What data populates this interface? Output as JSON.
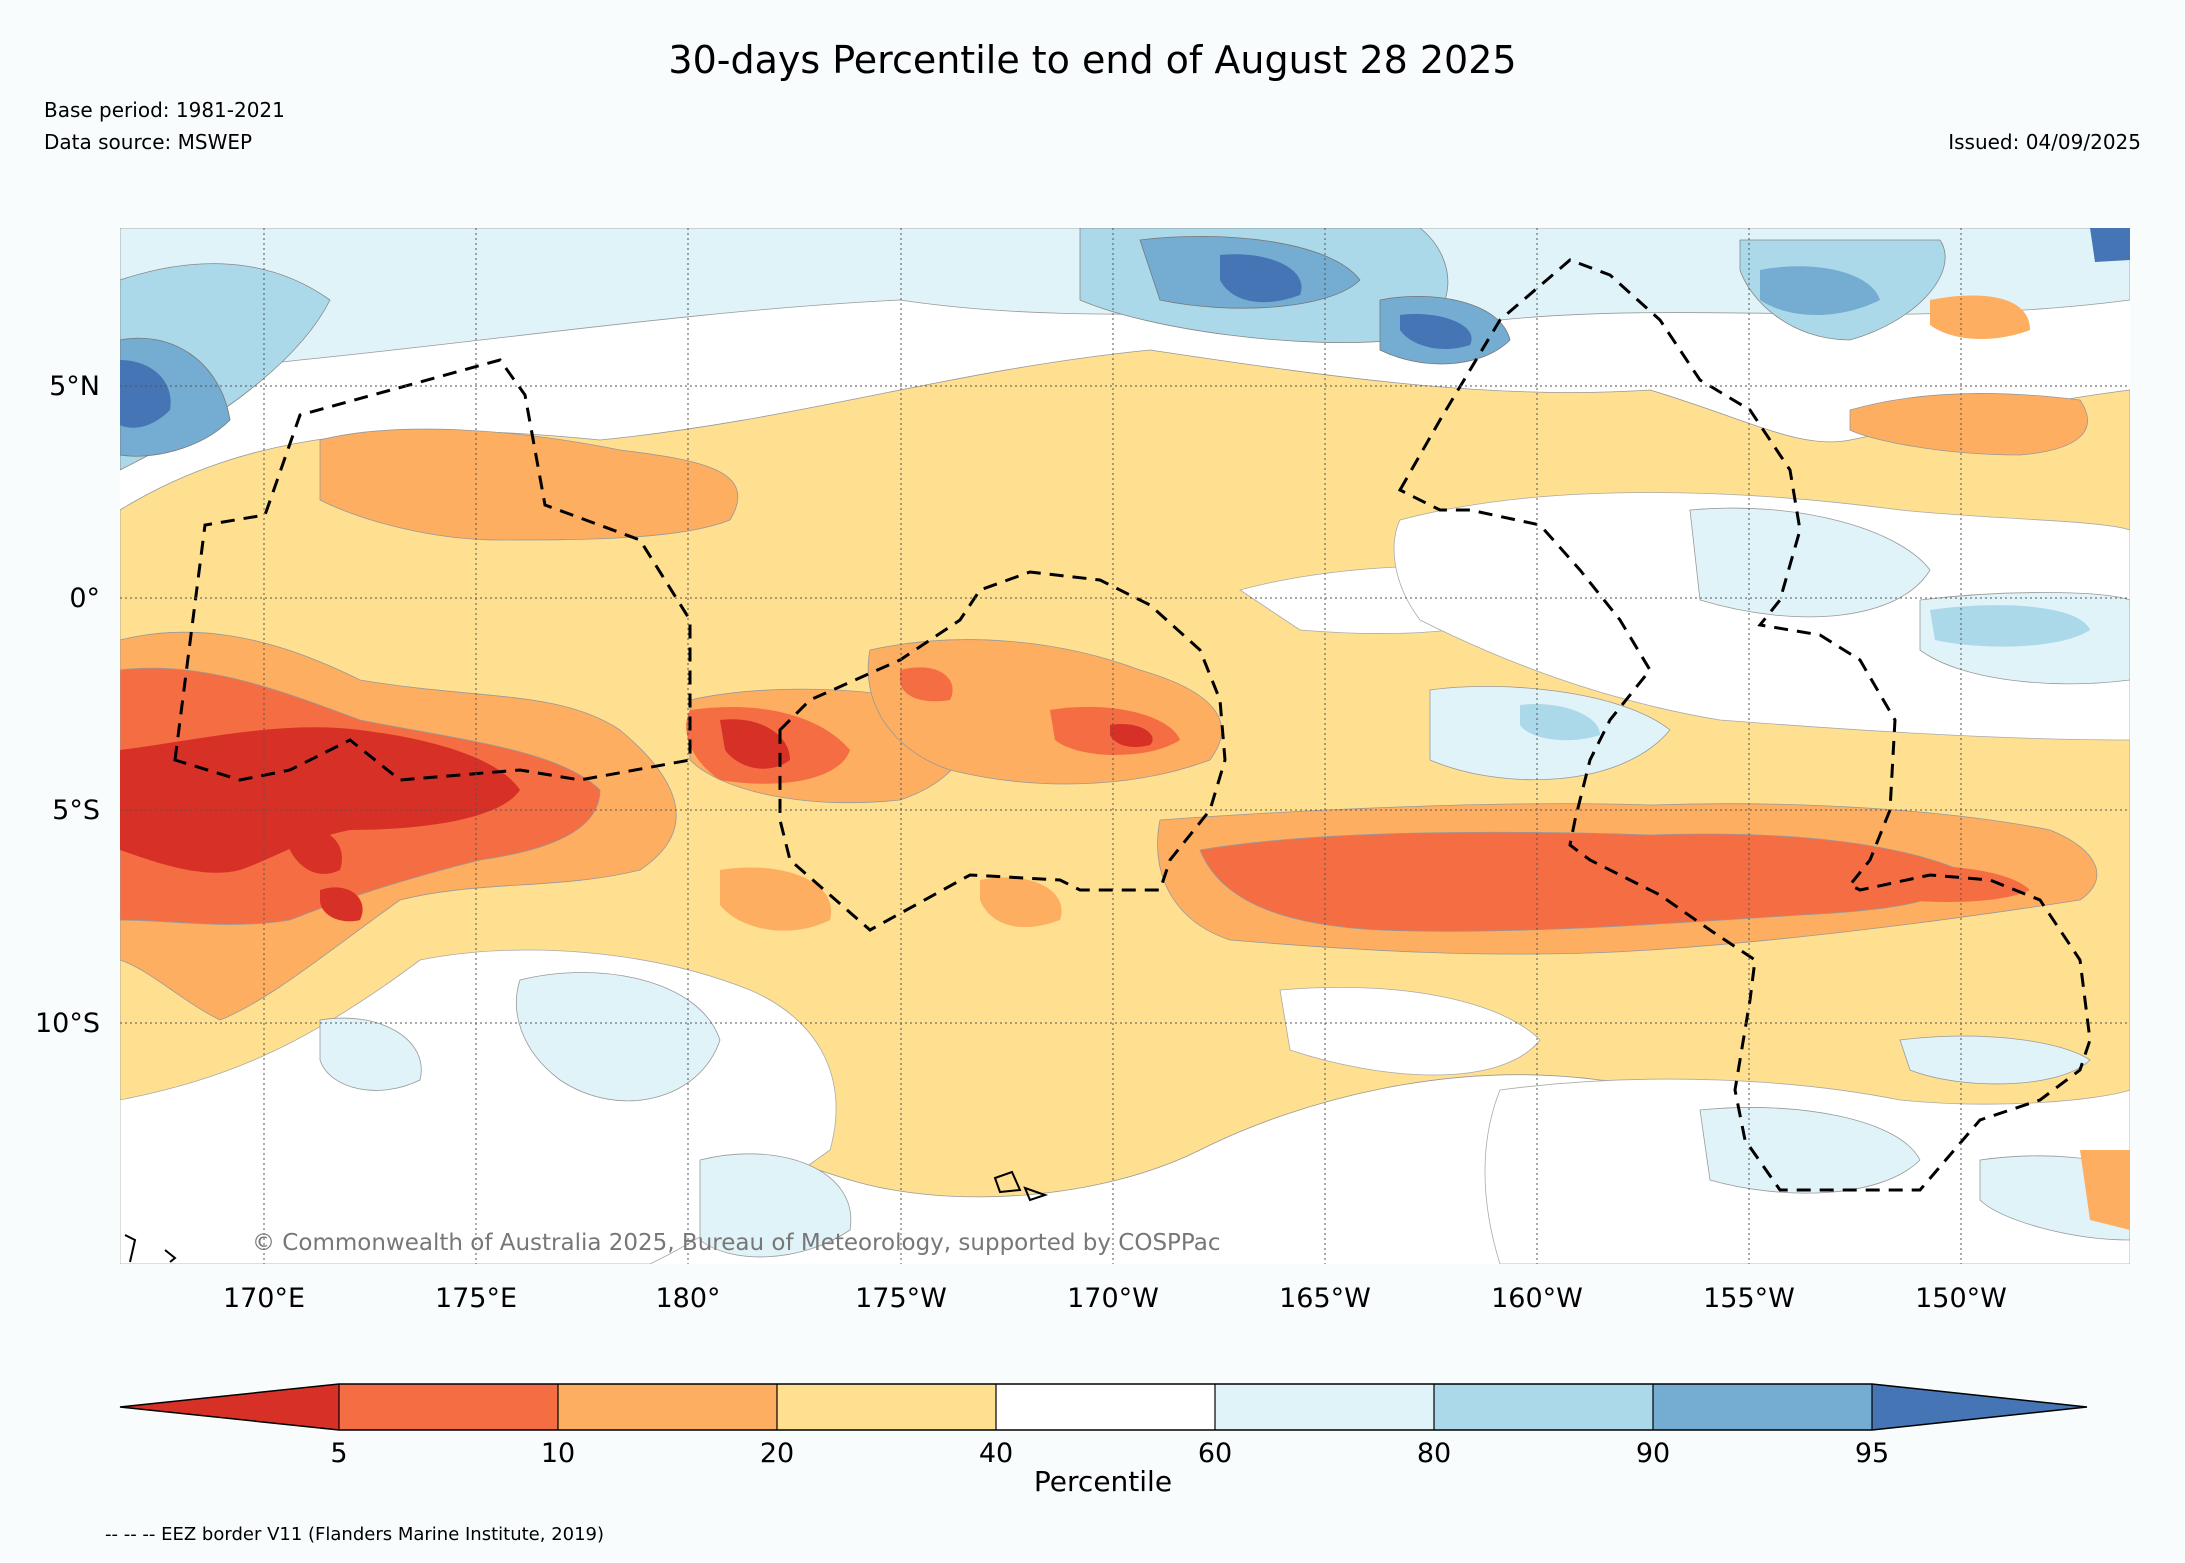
{
  "title": "30-days Percentile to end of August 28 2025",
  "base_period": "Base period: 1981-2021",
  "data_source": "Data source: MSWEP",
  "issued": "Issued: 04/09/2025",
  "copyright": "© Commonwealth of Australia 2025, Bureau of Meteorology, supported by COSPPac",
  "lat_labels": [
    "5°N",
    "0°",
    "5°S",
    "10°S"
  ],
  "lon_labels": [
    "170°E",
    "175°E",
    "180°",
    "175°W",
    "170°W",
    "165°W",
    "160°W",
    "155°W",
    "150°W"
  ],
  "colorbar": {
    "label": "Percentile",
    "ticks": [
      "5",
      "10",
      "20",
      "40",
      "60",
      "80",
      "90",
      "95"
    ],
    "colors": [
      "#d73027",
      "#f46d43",
      "#fdae61",
      "#fee090",
      "#ffffff",
      "#e0f3f8",
      "#abd9e9",
      "#74add1",
      "#4575b4"
    ]
  },
  "footer": "-- -- -- EEZ border V11 (Flanders Marine Institute, 2019)"
}
